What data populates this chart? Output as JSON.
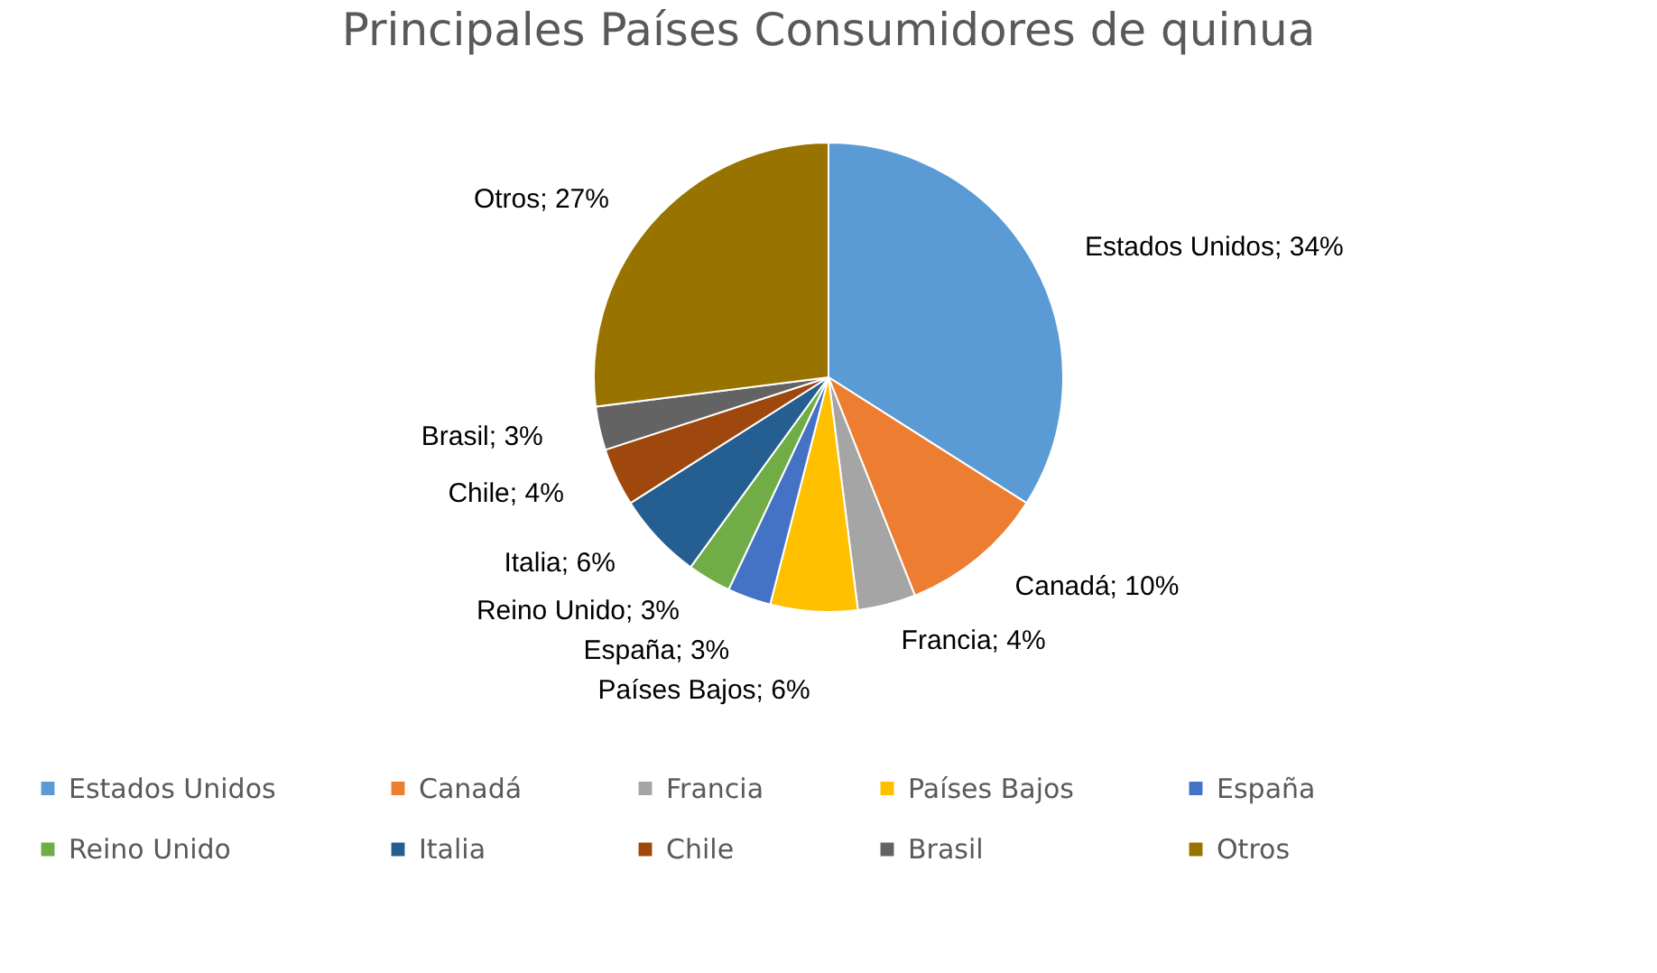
{
  "chart_data": {
    "type": "pie",
    "title": "Principales Países Consumidores de quinua",
    "categories": [
      "Estados Unidos",
      "Canadá",
      "Francia",
      "Países Bajos",
      "España",
      "Reino Unido",
      "Italia",
      "Chile",
      "Brasil",
      "Otros"
    ],
    "values": [
      34,
      10,
      4,
      6,
      3,
      3,
      6,
      4,
      3,
      27
    ],
    "value_labels": [
      "Estados Unidos; 34%",
      "Canadá; 10%",
      "Francia; 4%",
      "Países Bajos; 6%",
      "España; 3%",
      "Reino Unido; 3%",
      "Italia; 6%",
      "Chile; 4%",
      "Brasil; 3%",
      "Otros; 27%"
    ],
    "colors": [
      "#5b9bd5",
      "#ed7d31",
      "#a5a5a5",
      "#ffc000",
      "#4472c4",
      "#70ad47",
      "#255e91",
      "#9e480e",
      "#636363",
      "#997300"
    ],
    "legend": "bottom"
  }
}
